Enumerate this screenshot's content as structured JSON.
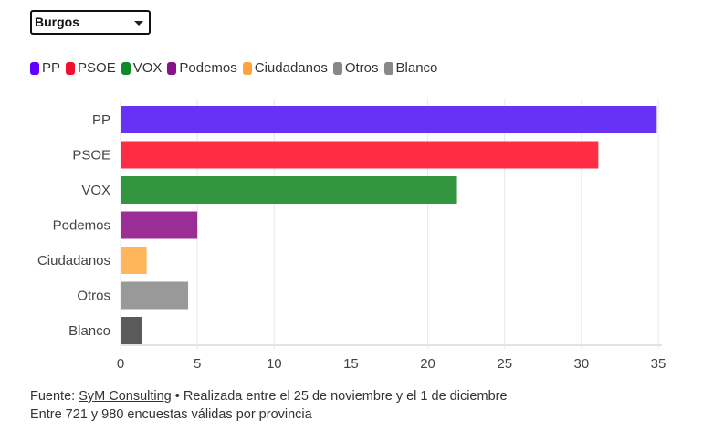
{
  "selector": {
    "value": "Burgos"
  },
  "chart_data": {
    "type": "bar",
    "orientation": "horizontal",
    "categories": [
      "PP",
      "PSOE",
      "VOX",
      "Podemos",
      "Ciudadanos",
      "Otros",
      "Blanco"
    ],
    "values": [
      34.9,
      31.1,
      21.9,
      5.0,
      1.7,
      4.4,
      1.4
    ],
    "colors": [
      "#6633f5",
      "#ff2d43",
      "#32963f",
      "#9b2e96",
      "#ffb55a",
      "#999999",
      "#5a5a5a"
    ],
    "xlim": [
      0,
      35
    ],
    "xticks": [
      "0",
      "5",
      "10",
      "15",
      "20",
      "25",
      "30",
      "35"
    ],
    "grid": true,
    "legend": {
      "placement": "top-left",
      "entries": [
        {
          "name": "PP",
          "color": "#6200ff"
        },
        {
          "name": "PSOE",
          "color": "#f00f2d"
        },
        {
          "name": "VOX",
          "color": "#0f8a28"
        },
        {
          "name": "Podemos",
          "color": "#8a0f8a"
        },
        {
          "name": "Ciudadanos",
          "color": "#ffa23a"
        },
        {
          "name": "Otros",
          "color": "#888888"
        },
        {
          "name": "Blanco",
          "color": "#888888"
        }
      ]
    }
  },
  "footer": {
    "prefix": "Fuente:",
    "source_link": "SyM Consulting",
    "line1_rest": " • Realizada entre el 25 de noviembre y el 1 de diciembre",
    "line2": "Entre 721 y 980 encuestas válidas por provincia"
  }
}
